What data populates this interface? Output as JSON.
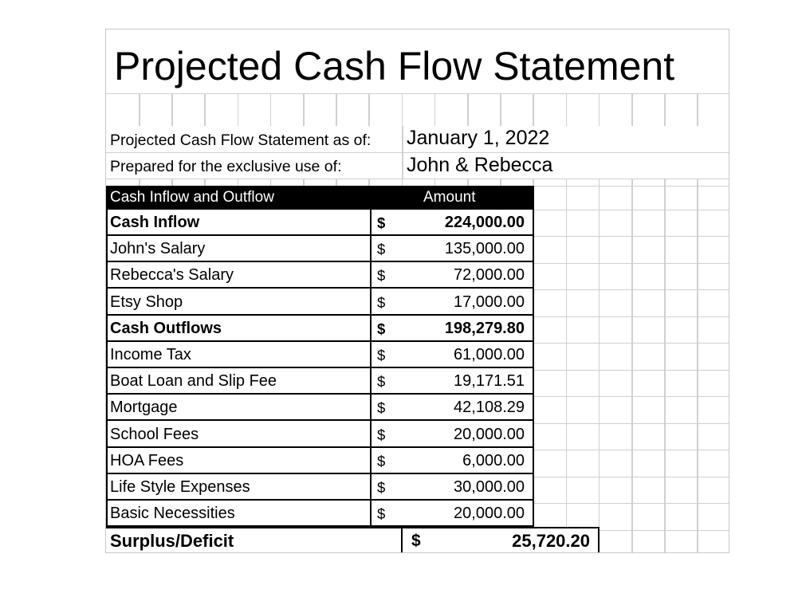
{
  "title": "Projected Cash Flow Statement",
  "meta": [
    {
      "label": "Projected Cash Flow Statement as of:",
      "value": "January 1, 2022"
    },
    {
      "label": "Prepared for the exclusive use of:",
      "value": "John & Rebecca"
    }
  ],
  "header": {
    "label": "Cash Inflow and Outflow",
    "amount": "Amount"
  },
  "rows": [
    {
      "label": "Cash Inflow",
      "currency": "$",
      "value": "224,000.00",
      "bold": true
    },
    {
      "label": "John's Salary",
      "currency": "$",
      "value": "135,000.00",
      "bold": false
    },
    {
      "label": "Rebecca's Salary",
      "currency": "$",
      "value": "72,000.00",
      "bold": false
    },
    {
      "label": "Etsy Shop",
      "currency": "$",
      "value": "17,000.00",
      "bold": false
    },
    {
      "label": "Cash Outflows",
      "currency": "$",
      "value": "198,279.80",
      "bold": true
    },
    {
      "label": "Income Tax",
      "currency": "$",
      "value": "61,000.00",
      "bold": false
    },
    {
      "label": "Boat Loan and Slip Fee",
      "currency": "$",
      "value": "19,171.51",
      "bold": false
    },
    {
      "label": "Mortgage",
      "currency": "$",
      "value": "42,108.29",
      "bold": false
    },
    {
      "label": "School Fees",
      "currency": "$",
      "value": "20,000.00",
      "bold": false
    },
    {
      "label": "HOA Fees",
      "currency": "$",
      "value": "6,000.00",
      "bold": false
    },
    {
      "label": "Life Style Expenses",
      "currency": "$",
      "value": "30,000.00",
      "bold": false
    },
    {
      "label": "Basic Necessities",
      "currency": "$",
      "value": "20,000.00",
      "bold": false
    }
  ],
  "total": {
    "label": "Surplus/Deficit",
    "currency": "$",
    "value": "25,720.20"
  }
}
